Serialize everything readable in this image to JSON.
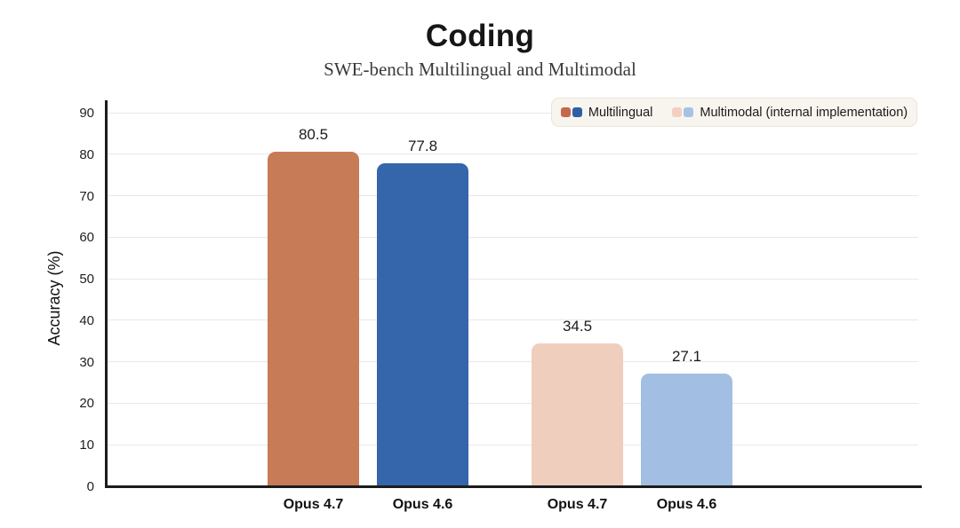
{
  "page": {
    "background": "#ffffff"
  },
  "chart_data": {
    "type": "bar",
    "title": "Coding",
    "subtitle": "SWE-bench Multilingual and Multimodal",
    "ylabel": "Accuracy (%)",
    "xlabel": "",
    "ylim": [
      0,
      90
    ],
    "ytick_step": 10,
    "yticks": [
      0,
      10,
      20,
      30,
      40,
      50,
      60,
      70,
      80,
      90
    ],
    "grid": true,
    "categories": [
      "Opus 4.7",
      "Opus 4.6",
      "Opus 4.7",
      "Opus 4.6"
    ],
    "values": [
      80.5,
      77.8,
      34.5,
      27.1
    ],
    "value_labels": [
      "80.5",
      "77.8",
      "34.5",
      "27.1"
    ],
    "bar_colors": [
      "#C87B57",
      "#3566AC",
      "#EFCEBD",
      "#A3BEE3"
    ],
    "legend_position": "top-right",
    "legend": [
      {
        "label": "Multilingual",
        "swatches": [
          "#C4694D",
          "#2E5FA7"
        ]
      },
      {
        "label": "Multimodal (internal implementation)",
        "swatches": [
          "#F2D0C1",
          "#A6C2E4"
        ]
      }
    ],
    "axis_color": "#1c1c1c",
    "gridline_color": "#e8e8e8",
    "legend_bg_color": "#f8f5ef"
  }
}
